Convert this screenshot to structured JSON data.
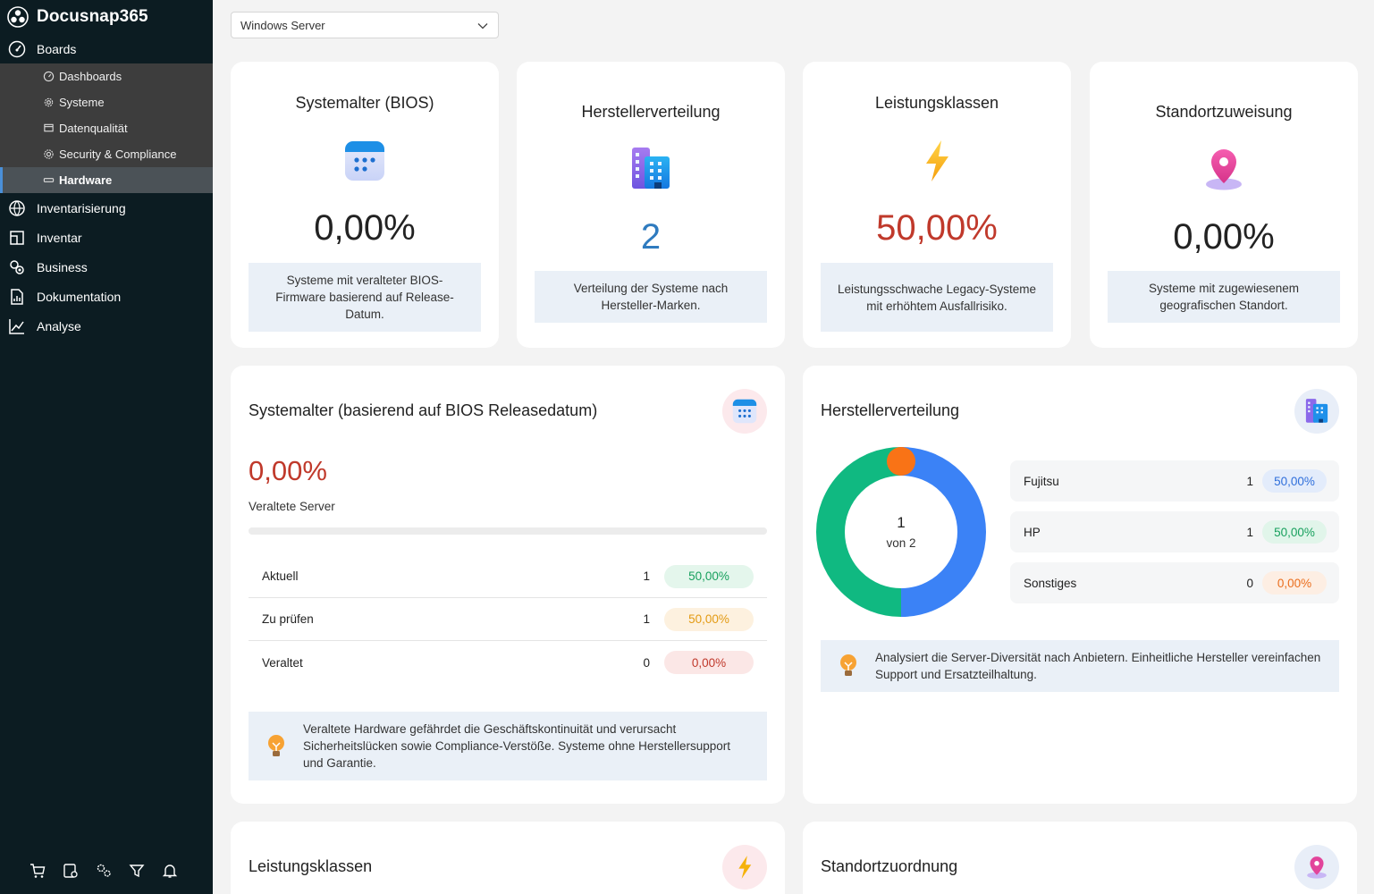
{
  "app": {
    "title": "Docusnap365"
  },
  "sidebar": {
    "items": [
      {
        "label": "Boards"
      },
      {
        "label": "Inventarisierung"
      },
      {
        "label": "Inventar"
      },
      {
        "label": "Business"
      },
      {
        "label": "Dokumentation"
      },
      {
        "label": "Analyse"
      }
    ],
    "sub_items": [
      {
        "label": "Dashboards"
      },
      {
        "label": "Systeme"
      },
      {
        "label": "Datenqualität"
      },
      {
        "label": "Security & Compliance"
      },
      {
        "label": "Hardware"
      }
    ],
    "bottom_icons": [
      "cart-icon",
      "database-settings-icon",
      "settings-icon",
      "filter-icon",
      "bell-icon"
    ]
  },
  "filter": {
    "selected": "Windows Server"
  },
  "kpis": [
    {
      "title": "Systemalter (BIOS)",
      "value": "0,00%",
      "description": "Systeme mit veralteter BIOS-Firmware basierend auf Release-Datum.",
      "icon": "calendar-icon",
      "color": "#222222"
    },
    {
      "title": "Herstellerverteilung",
      "value": "2",
      "description": "Verteilung der Systeme nach Hersteller-Marken.",
      "icon": "building-icon",
      "color": "#2f7bbf"
    },
    {
      "title": "Leistungsklassen",
      "value": "50,00%",
      "description": "Leistungsschwache Legacy-Systeme mit erhöhtem Ausfallrisiko.",
      "icon": "lightning-icon",
      "color": "#c0392b"
    },
    {
      "title": "Standortzuweisung",
      "value": "0,00%",
      "description": "Systeme mit zugewiesenem geografischen Standort.",
      "icon": "location-pin-icon",
      "color": "#222222"
    }
  ],
  "age_card": {
    "title": "Systemalter (basierend auf BIOS Releasedatum)",
    "value": "0,00%",
    "subtitle": "Veraltete Server",
    "progress": 0,
    "rows": [
      {
        "label": "Aktuell",
        "count": "1",
        "percent": "50,00%"
      },
      {
        "label": "Zu prüfen",
        "count": "1",
        "percent": "50,00%"
      },
      {
        "label": "Veraltet",
        "count": "0",
        "percent": "0,00%"
      }
    ],
    "hint": "Veraltete Hardware gefährdet die Geschäftskontinuität und verursacht Sicherheitslücken sowie Compliance-Verstöße. Systeme ohne Herstellersupport und Garantie."
  },
  "vendor_card": {
    "title": "Herstellerverteilung",
    "center_value": "1",
    "center_label": "von 2",
    "rows": [
      {
        "label": "Fujitsu",
        "count": "1",
        "percent": "50,00%"
      },
      {
        "label": "HP",
        "count": "1",
        "percent": "50,00%"
      },
      {
        "label": "Sonstiges",
        "count": "0",
        "percent": "0,00%"
      }
    ],
    "hint": "Analysiert die Server-Diversität nach Anbietern. Einheitliche Hersteller vereinfachen Support und Ersatzteilhaltung.",
    "donut": {
      "segments": [
        {
          "value": 1,
          "color": "#3b82f6"
        },
        {
          "value": 1,
          "color": "#10b981"
        },
        {
          "value": 0,
          "color": "#f97316"
        }
      ]
    }
  },
  "perf_card": {
    "title": "Leistungsklassen"
  },
  "loc_card": {
    "title": "Standortzuordnung"
  }
}
